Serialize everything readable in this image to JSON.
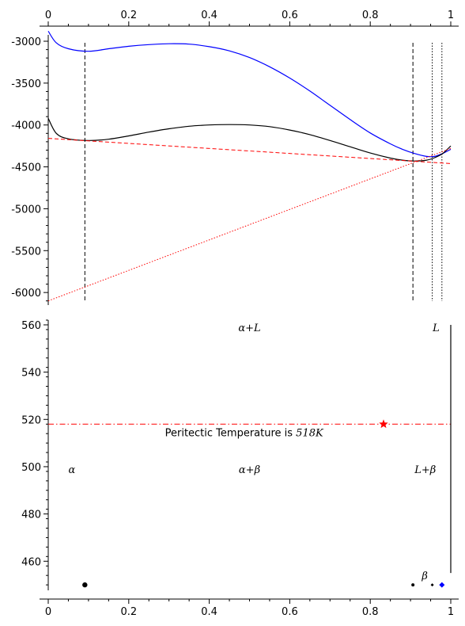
{
  "chart_data": [
    {
      "type": "line",
      "title": "",
      "xlabel": "",
      "ylabel": "",
      "xlim": [
        0,
        1
      ],
      "ylim": [
        -6150,
        -2820
      ],
      "x_ticks": [
        0,
        0.2,
        0.4,
        0.6,
        0.8,
        1
      ],
      "x_tick_labels": [
        "0",
        "0.2",
        "0.4",
        "0.6",
        "0.8",
        "1"
      ],
      "y_ticks": [
        -3000,
        -3500,
        -4000,
        -4500,
        -5000,
        -5500,
        -6000
      ],
      "y_tick_labels": [
        "-3000",
        "-3500",
        "-4000",
        "-4500",
        "-5000",
        "-5500",
        "-6000"
      ],
      "x_axis_position": "top",
      "grid": false,
      "series": [
        {
          "color": "#0000ff",
          "style": "solid",
          "x": [
            0,
            0.02,
            0.05,
            0.1,
            0.15,
            0.2,
            0.25,
            0.3,
            0.35,
            0.4,
            0.45,
            0.5,
            0.55,
            0.6,
            0.65,
            0.7,
            0.75,
            0.8,
            0.85,
            0.88,
            0.91,
            0.94,
            0.96,
            0.98,
            1.0
          ],
          "values": [
            -2880,
            -3020,
            -3090,
            -3120,
            -3090,
            -3060,
            -3040,
            -3030,
            -3035,
            -3065,
            -3115,
            -3195,
            -3305,
            -3440,
            -3595,
            -3765,
            -3935,
            -4095,
            -4225,
            -4290,
            -4340,
            -4375,
            -4375,
            -4340,
            -4290
          ]
        },
        {
          "color": "#000000",
          "style": "solid",
          "x": [
            0,
            0.02,
            0.05,
            0.1,
            0.15,
            0.2,
            0.25,
            0.3,
            0.35,
            0.4,
            0.45,
            0.5,
            0.55,
            0.6,
            0.65,
            0.7,
            0.75,
            0.8,
            0.85,
            0.88,
            0.91,
            0.94,
            0.96,
            0.98,
            1.0
          ],
          "values": [
            -3920,
            -4100,
            -4165,
            -4185,
            -4170,
            -4130,
            -4085,
            -4045,
            -4015,
            -4000,
            -3995,
            -4000,
            -4020,
            -4060,
            -4115,
            -4185,
            -4260,
            -4335,
            -4395,
            -4420,
            -4430,
            -4420,
            -4390,
            -4340,
            -4250
          ]
        },
        {
          "color": "#ff0000",
          "style": "dashed",
          "x": [
            0,
            1
          ],
          "values": [
            -4160,
            -4460
          ]
        },
        {
          "color": "#ff0000",
          "style": "dotted",
          "x": [
            0,
            1
          ],
          "values": [
            -6100,
            -4280
          ]
        }
      ],
      "vertical_lines": [
        {
          "x": 0.091,
          "style": "dashed",
          "color": "#000000"
        },
        {
          "x": 0.906,
          "style": "dashed",
          "color": "#000000"
        },
        {
          "x": 0.954,
          "style": "dotted",
          "color": "#000000"
        },
        {
          "x": 0.978,
          "style": "dotted",
          "color": "#000000"
        }
      ]
    },
    {
      "type": "scatter",
      "title": "",
      "xlabel": "",
      "ylabel": "",
      "xlim": [
        0,
        1
      ],
      "ylim": [
        444,
        562
      ],
      "x_ticks": [
        0,
        0.2,
        0.4,
        0.6,
        0.8,
        1
      ],
      "x_tick_labels": [
        "0",
        "0.2",
        "0.4",
        "0.6",
        "0.8",
        "1"
      ],
      "y_ticks": [
        460,
        480,
        500,
        520,
        540,
        560
      ],
      "y_tick_labels": [
        "460",
        "480",
        "500",
        "520",
        "540",
        "560"
      ],
      "grid": false,
      "points": [
        {
          "x": 0.091,
          "y": 450,
          "marker": "circle",
          "size": "large",
          "color": "#000000"
        },
        {
          "x": 0.906,
          "y": 450,
          "marker": "circle",
          "size": "small",
          "color": "#000000"
        },
        {
          "x": 0.954,
          "y": 450,
          "marker": "diamond",
          "size": "small",
          "color": "#000000"
        },
        {
          "x": 0.978,
          "y": 450,
          "marker": "diamond",
          "size": "medium",
          "color": "#0000ff"
        },
        {
          "x": 0.833,
          "y": 518,
          "marker": "star",
          "size": "large",
          "color": "#ff0000"
        }
      ],
      "horizontal_lines": [
        {
          "y": 518,
          "style": "dashdot",
          "color": "#ff0000"
        }
      ],
      "vertical_segments": [
        {
          "x": 1.0,
          "y0": 455,
          "y1": 560,
          "color": "#000000"
        }
      ],
      "annotations": [
        {
          "text": "α+L",
          "x": 0.5,
          "y": 559,
          "math": true
        },
        {
          "text": "L",
          "x": 0.955,
          "y": 559,
          "math": true
        },
        {
          "text": "α",
          "x": 0.05,
          "y": 499,
          "math": true
        },
        {
          "text": "α+β",
          "x": 0.5,
          "y": 499,
          "math": true
        },
        {
          "text": "L+β",
          "x": 0.91,
          "y": 499,
          "math": true
        },
        {
          "text": "β",
          "x": 0.928,
          "y": 454,
          "math": true
        },
        {
          "prefix": "Peritectic Temperature is ",
          "value": "518K",
          "x": 0.29,
          "y": 514.5
        }
      ]
    }
  ]
}
